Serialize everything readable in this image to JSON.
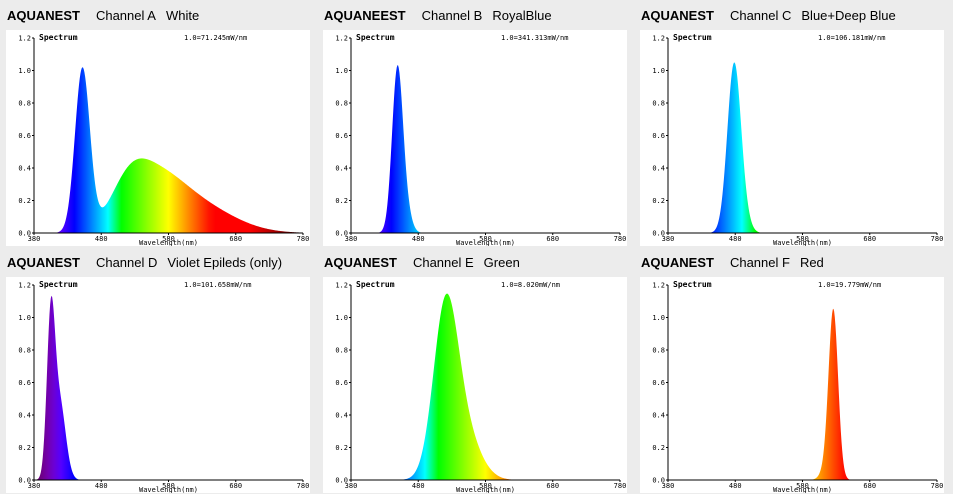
{
  "chart_data": [
    {
      "type": "area",
      "brand": "AQUANEST",
      "channel": "Channel A",
      "description": "White",
      "title": "Spectrum",
      "scale_note": "1.0=71.245mW/nm",
      "xlabel": "Wavelength(nm)",
      "xlim": [
        380,
        780
      ],
      "ylim": [
        0,
        1.2
      ],
      "x_ticks": [
        "380",
        "480",
        "580",
        "680",
        "780"
      ],
      "y_ticks": [
        "0.0",
        "0.2",
        "0.4",
        "0.6",
        "0.8",
        "1.0",
        "1.2"
      ],
      "peaks": [
        {
          "center": 452,
          "width": 11,
          "amplitude": 1.0
        },
        {
          "center": 520,
          "width": 28,
          "amplitude": 0.22
        },
        {
          "center": 560,
          "width": 40,
          "amplitude": 0.26
        },
        {
          "center": 620,
          "width": 55,
          "amplitude": 0.17
        }
      ]
    },
    {
      "type": "area",
      "brand": "AQUANEEST",
      "channel": "Channel B",
      "description": "RoyalBlue",
      "title": "Spectrum",
      "scale_note": "1.0=341.313mW/nm",
      "xlabel": "Wavelength(nm)",
      "xlim": [
        380,
        780
      ],
      "ylim": [
        0,
        1.2
      ],
      "x_ticks": [
        "380",
        "480",
        "580",
        "680",
        "780"
      ],
      "y_ticks": [
        "0.0",
        "0.2",
        "0.4",
        "0.6",
        "0.8",
        "1.0",
        "1.2"
      ],
      "peaks": [
        {
          "center": 449,
          "width": 8,
          "amplitude": 1.0
        },
        {
          "center": 462,
          "width": 8,
          "amplitude": 0.12
        }
      ]
    },
    {
      "type": "area",
      "brand": "AQUANEST",
      "channel": "Channel C",
      "description": "Blue+Deep Blue",
      "title": "Spectrum",
      "scale_note": "1.0=106.181mW/nm",
      "xlabel": "Wavelength(nm)",
      "xlim": [
        380,
        780
      ],
      "ylim": [
        0,
        1.2
      ],
      "x_ticks": [
        "380",
        "480",
        "580",
        "680",
        "780"
      ],
      "y_ticks": [
        "0.0",
        "0.2",
        "0.4",
        "0.6",
        "0.8",
        "1.0",
        "1.2"
      ],
      "peaks": [
        {
          "center": 478,
          "width": 10,
          "amplitude": 1.0
        },
        {
          "center": 490,
          "width": 10,
          "amplitude": 0.1
        }
      ]
    },
    {
      "type": "area",
      "brand": "AQUANEST",
      "channel": "Channel D",
      "description": "Violet Epileds (only)",
      "title": "Spectrum",
      "scale_note": "1.0=101.658mW/nm",
      "xlabel": "Wavelength(nm)",
      "xlim": [
        380,
        780
      ],
      "ylim": [
        0,
        1.2
      ],
      "x_ticks": [
        "380",
        "480",
        "580",
        "680",
        "780"
      ],
      "y_ticks": [
        "0.0",
        "0.2",
        "0.4",
        "0.6",
        "0.8",
        "1.0",
        "1.2"
      ],
      "peaks": [
        {
          "center": 405,
          "width": 6,
          "amplitude": 0.95
        },
        {
          "center": 418,
          "width": 9,
          "amplitude": 0.48
        }
      ]
    },
    {
      "type": "area",
      "brand": "AQUANEST",
      "channel": "Channel E",
      "description": "Green",
      "title": "Spectrum",
      "scale_note": "1.0=8.020mW/nm",
      "xlabel": "Wavelength(nm)",
      "xlim": [
        380,
        780
      ],
      "ylim": [
        0,
        1.2
      ],
      "x_ticks": [
        "380",
        "480",
        "580",
        "680",
        "780"
      ],
      "y_ticks": [
        "0.0",
        "0.2",
        "0.4",
        "0.6",
        "0.8",
        "1.0",
        "1.2"
      ],
      "peaks": [
        {
          "center": 520,
          "width": 18,
          "amplitude": 0.95
        },
        {
          "center": 545,
          "width": 24,
          "amplitude": 0.32
        }
      ]
    },
    {
      "type": "area",
      "brand": "AQUANEST",
      "channel": "Channel F",
      "description": "Red",
      "title": "Spectrum",
      "scale_note": "1.0=19.779mW/nm",
      "xlabel": "Wavelength(nm)",
      "xlim": [
        380,
        780
      ],
      "ylim": [
        0,
        1.2
      ],
      "x_ticks": [
        "380",
        "480",
        "580",
        "680",
        "780"
      ],
      "y_ticks": [
        "0.0",
        "0.2",
        "0.4",
        "0.6",
        "0.8",
        "1.0",
        "1.2"
      ],
      "peaks": [
        {
          "center": 626,
          "width": 7,
          "amplitude": 1.0
        },
        {
          "center": 618,
          "width": 9,
          "amplitude": 0.08
        }
      ]
    }
  ]
}
